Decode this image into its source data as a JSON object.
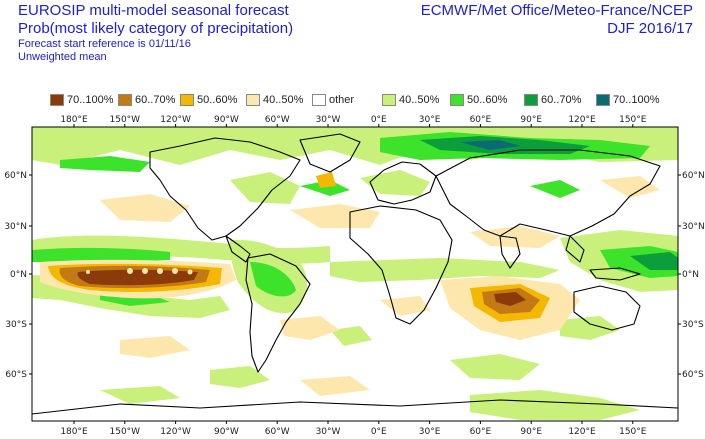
{
  "header": {
    "title_line1": "EUROSIP multi-model seasonal forecast",
    "title_line2": "Prob(most likely category of precipitation)",
    "start_reference": "Forecast start reference is 01/11/16",
    "weighting": "Unweighted mean",
    "centres": "ECMWF/Met Office/Meteo-France/NCEP",
    "season": "DJF 2016/17"
  },
  "legend": [
    {
      "label": "70..100%",
      "color": "#8b3a0a"
    },
    {
      "label": "60..70%",
      "color": "#c47a14"
    },
    {
      "label": "50..60%",
      "color": "#f4b800"
    },
    {
      "label": "40..50%",
      "color": "#fde7ad"
    },
    {
      "label": "other",
      "color": "#ffffff"
    },
    {
      "label": "40..50%",
      "color": "#c9f07a"
    },
    {
      "label": "50..60%",
      "color": "#3ce32a"
    },
    {
      "label": "60..70%",
      "color": "#0b9e3a"
    },
    {
      "label": "70..100%",
      "color": "#0b6a74"
    }
  ],
  "axes": {
    "lon_labels": [
      "180°E",
      "150°W",
      "120°W",
      "90°W",
      "60°W",
      "30°W",
      "0°E",
      "30°E",
      "60°E",
      "90°E",
      "120°E",
      "150°E"
    ],
    "lat_labels_left": [
      "60°N",
      "30°N",
      "0°N",
      "30°S",
      "60°S"
    ],
    "lat_labels_right": [
      "60°N",
      "30°N",
      "0°N",
      "30°S",
      "60°S"
    ]
  }
}
